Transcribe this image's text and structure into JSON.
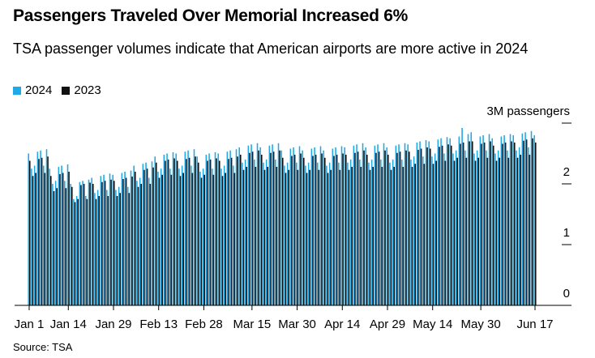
{
  "chart_data": {
    "type": "bar",
    "title": "Passengers Traveled Over Memorial Increased 6%",
    "subtitle": "TSA passenger volumes indicate that American airports are more active in 2024",
    "source": "Source: TSA",
    "categories": [
      "Jan 1",
      null,
      null,
      null,
      null,
      null,
      null,
      null,
      null,
      null,
      null,
      null,
      null,
      "Jan 14",
      null,
      null,
      null,
      null,
      null,
      null,
      null,
      null,
      null,
      null,
      null,
      null,
      null,
      null,
      "Jan 29",
      null,
      null,
      null,
      null,
      null,
      null,
      null,
      null,
      null,
      null,
      null,
      null,
      null,
      null,
      "Feb 13",
      null,
      null,
      null,
      null,
      null,
      null,
      null,
      null,
      null,
      null,
      null,
      null,
      null,
      null,
      "Feb 28",
      null,
      null,
      null,
      null,
      null,
      null,
      null,
      null,
      null,
      null,
      null,
      null,
      null,
      null,
      null,
      "Mar 15",
      null,
      null,
      null,
      null,
      null,
      null,
      null,
      null,
      null,
      null,
      null,
      null,
      null,
      null,
      "Mar 30",
      null,
      null,
      null,
      null,
      null,
      null,
      null,
      null,
      null,
      null,
      null,
      null,
      null,
      null,
      "Apr 14",
      null,
      null,
      null,
      null,
      null,
      null,
      null,
      null,
      null,
      null,
      null,
      null,
      null,
      null,
      "Apr 29",
      null,
      null,
      null,
      null,
      null,
      null,
      null,
      null,
      null,
      null,
      null,
      null,
      null,
      null,
      "May 14",
      null,
      null,
      null,
      null,
      null,
      null,
      null,
      null,
      null,
      null,
      null,
      null,
      null,
      null,
      null,
      "May 30",
      null,
      null,
      null,
      null,
      null,
      null,
      null,
      null,
      null,
      null,
      null,
      null,
      null,
      null,
      null,
      null,
      null,
      "Jun 17"
    ],
    "series": [
      {
        "name": "2024",
        "color": "#1fa9e6",
        "values": [
          2.5,
          2.25,
          2.3,
          2.53,
          2.55,
          2.3,
          2.57,
          2.25,
          2.0,
          2.05,
          2.28,
          2.3,
          2.05,
          2.32,
          2.0,
          1.75,
          1.8,
          2.03,
          2.05,
          1.8,
          2.07,
          2.1,
          1.85,
          1.9,
          2.13,
          2.15,
          1.9,
          2.17,
          2.15,
          1.9,
          1.95,
          2.18,
          2.2,
          1.95,
          2.22,
          2.3,
          2.05,
          2.1,
          2.33,
          2.35,
          2.1,
          2.37,
          2.45,
          2.2,
          2.25,
          2.48,
          2.5,
          2.25,
          2.52,
          2.5,
          2.25,
          2.3,
          2.53,
          2.55,
          2.3,
          2.57,
          2.45,
          2.2,
          2.25,
          2.48,
          2.5,
          2.25,
          2.52,
          2.5,
          2.25,
          2.3,
          2.53,
          2.55,
          2.3,
          2.57,
          2.6,
          2.35,
          2.4,
          2.63,
          2.65,
          2.4,
          2.67,
          2.6,
          2.35,
          2.4,
          2.63,
          2.65,
          2.4,
          2.67,
          2.55,
          2.3,
          2.35,
          2.58,
          2.6,
          2.35,
          2.62,
          2.55,
          2.3,
          2.35,
          2.58,
          2.6,
          2.35,
          2.62,
          2.55,
          2.3,
          2.35,
          2.58,
          2.6,
          2.35,
          2.62,
          2.6,
          2.35,
          2.4,
          2.63,
          2.65,
          2.4,
          2.67,
          2.6,
          2.35,
          2.4,
          2.63,
          2.65,
          2.4,
          2.67,
          2.6,
          2.35,
          2.4,
          2.63,
          2.65,
          2.4,
          2.67,
          2.65,
          2.4,
          2.45,
          2.68,
          2.7,
          2.45,
          2.72,
          2.7,
          2.45,
          2.5,
          2.73,
          2.75,
          2.5,
          2.77,
          2.75,
          2.5,
          2.55,
          2.78,
          2.92,
          2.55,
          2.82,
          2.85,
          2.5,
          2.55,
          2.78,
          2.8,
          2.55,
          2.82,
          2.75,
          2.5,
          2.55,
          2.78,
          2.8,
          2.55,
          2.82,
          2.8,
          2.55,
          2.6,
          2.83,
          2.85,
          2.6,
          2.87,
          2.8
        ]
      },
      {
        "name": "2023",
        "color": "#111111",
        "values": [
          2.38,
          2.13,
          2.18,
          2.41,
          2.43,
          2.18,
          2.45,
          2.13,
          1.88,
          1.93,
          2.16,
          2.18,
          1.93,
          2.2,
          1.95,
          1.7,
          1.75,
          1.98,
          2.0,
          1.75,
          2.02,
          2.0,
          1.75,
          1.8,
          2.03,
          2.05,
          1.8,
          2.07,
          2.05,
          1.8,
          1.85,
          2.08,
          2.1,
          1.85,
          2.12,
          2.2,
          1.95,
          2.0,
          2.23,
          2.25,
          2.0,
          2.27,
          2.35,
          2.1,
          2.15,
          2.38,
          2.4,
          2.15,
          2.42,
          2.38,
          2.13,
          2.18,
          2.41,
          2.43,
          2.18,
          2.45,
          2.35,
          2.1,
          2.15,
          2.38,
          2.4,
          2.15,
          2.42,
          2.38,
          2.13,
          2.18,
          2.41,
          2.43,
          2.18,
          2.45,
          2.48,
          2.23,
          2.28,
          2.51,
          2.53,
          2.28,
          2.55,
          2.48,
          2.23,
          2.28,
          2.51,
          2.53,
          2.28,
          2.55,
          2.43,
          2.18,
          2.23,
          2.46,
          2.48,
          2.23,
          2.5,
          2.43,
          2.18,
          2.23,
          2.46,
          2.48,
          2.23,
          2.5,
          2.43,
          2.18,
          2.23,
          2.46,
          2.48,
          2.23,
          2.5,
          2.48,
          2.23,
          2.28,
          2.51,
          2.53,
          2.28,
          2.55,
          2.48,
          2.23,
          2.28,
          2.51,
          2.53,
          2.28,
          2.55,
          2.48,
          2.23,
          2.28,
          2.51,
          2.53,
          2.28,
          2.55,
          2.53,
          2.28,
          2.33,
          2.56,
          2.58,
          2.33,
          2.6,
          2.58,
          2.33,
          2.38,
          2.61,
          2.63,
          2.38,
          2.65,
          2.63,
          2.38,
          2.43,
          2.66,
          2.68,
          2.43,
          2.7,
          2.7,
          2.38,
          2.43,
          2.66,
          2.68,
          2.43,
          2.7,
          2.63,
          2.38,
          2.43,
          2.66,
          2.68,
          2.43,
          2.7,
          2.68,
          2.43,
          2.48,
          2.71,
          2.73,
          2.48,
          2.75,
          2.68
        ]
      }
    ],
    "ylim": [
      0,
      3
    ],
    "yticks": [
      0,
      1,
      2,
      {
        "value": 3,
        "label": "3M passengers"
      }
    ]
  }
}
